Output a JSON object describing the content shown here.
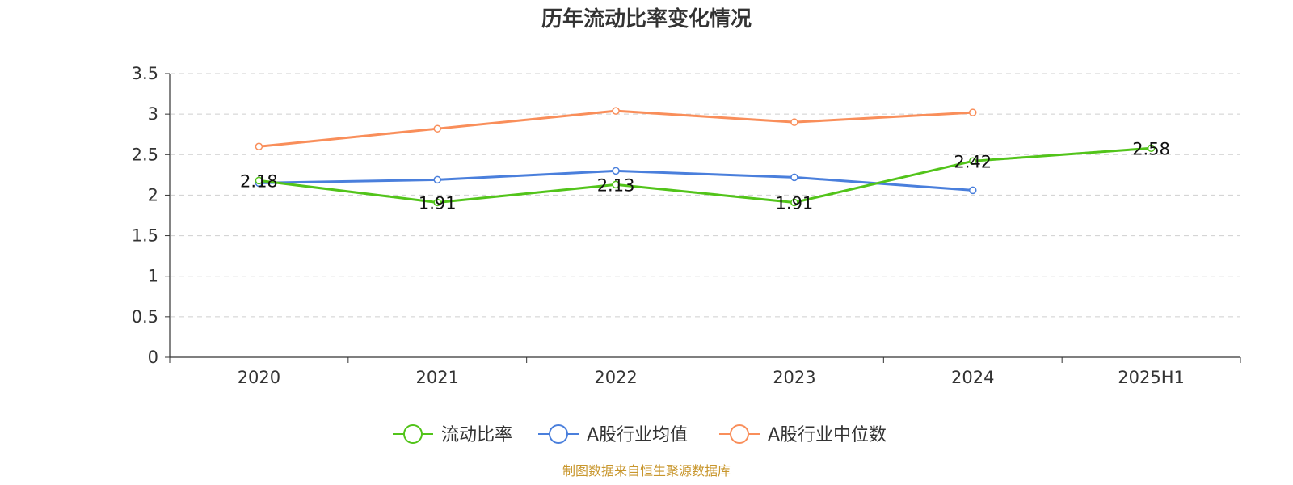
{
  "chart_data": {
    "type": "line",
    "title": "历年流动比率变化情况",
    "categories": [
      "2020",
      "2021",
      "2022",
      "2023",
      "2024",
      "2025H1"
    ],
    "ylim": [
      0,
      3.5
    ],
    "yticks": [
      "0",
      "0.5",
      "1",
      "1.5",
      "2",
      "2.5",
      "3",
      "3.5"
    ],
    "grid": true,
    "legend_position": "bottom",
    "series": [
      {
        "name": "流动比率",
        "color": "#52c41a",
        "values": [
          2.18,
          1.91,
          2.13,
          1.91,
          2.42,
          2.58
        ],
        "labels": [
          "2.18",
          "1.91",
          "2.13",
          "1.91",
          "2.42",
          "2.58"
        ]
      },
      {
        "name": "A股行业均值",
        "color": "#4a7fdc",
        "values": [
          2.15,
          2.19,
          2.3,
          2.22,
          2.06,
          null
        ]
      },
      {
        "name": "A股行业中位数",
        "color": "#f98e5a",
        "values": [
          2.6,
          2.82,
          3.04,
          2.9,
          3.02,
          null
        ]
      }
    ],
    "source": "制图数据来自恒生聚源数据库"
  }
}
